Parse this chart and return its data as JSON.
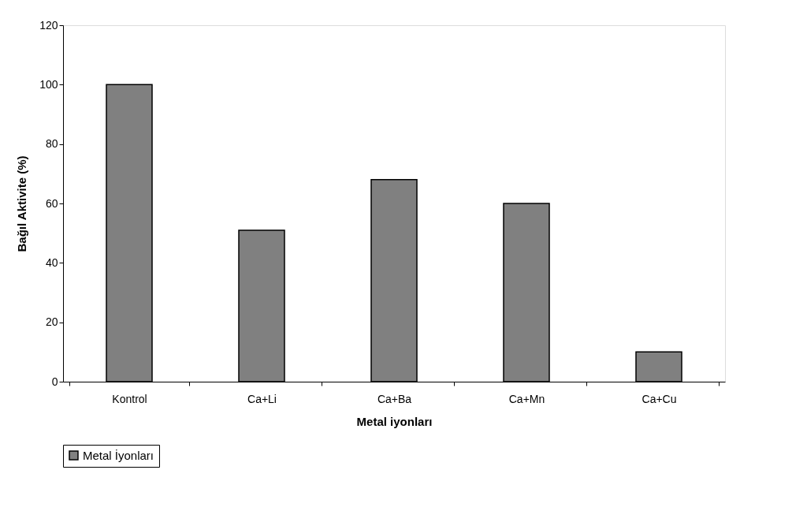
{
  "chart_data": {
    "type": "bar",
    "xlabel": "Metal iyonları",
    "ylabel": "Bağıl Aktivite (%)",
    "categories": [
      "Kontrol",
      "Ca+Li",
      "Ca+Ba",
      "Ca+Mn",
      "Ca+Cu"
    ],
    "series": [
      {
        "name": "Metal İyonları",
        "color": "#808080",
        "values": [
          100,
          51,
          68,
          60,
          10
        ]
      }
    ],
    "ylim": [
      0,
      120
    ],
    "yticks": [
      0,
      20,
      40,
      60,
      80,
      100,
      120
    ],
    "grid": false,
    "legend": "bottom"
  }
}
